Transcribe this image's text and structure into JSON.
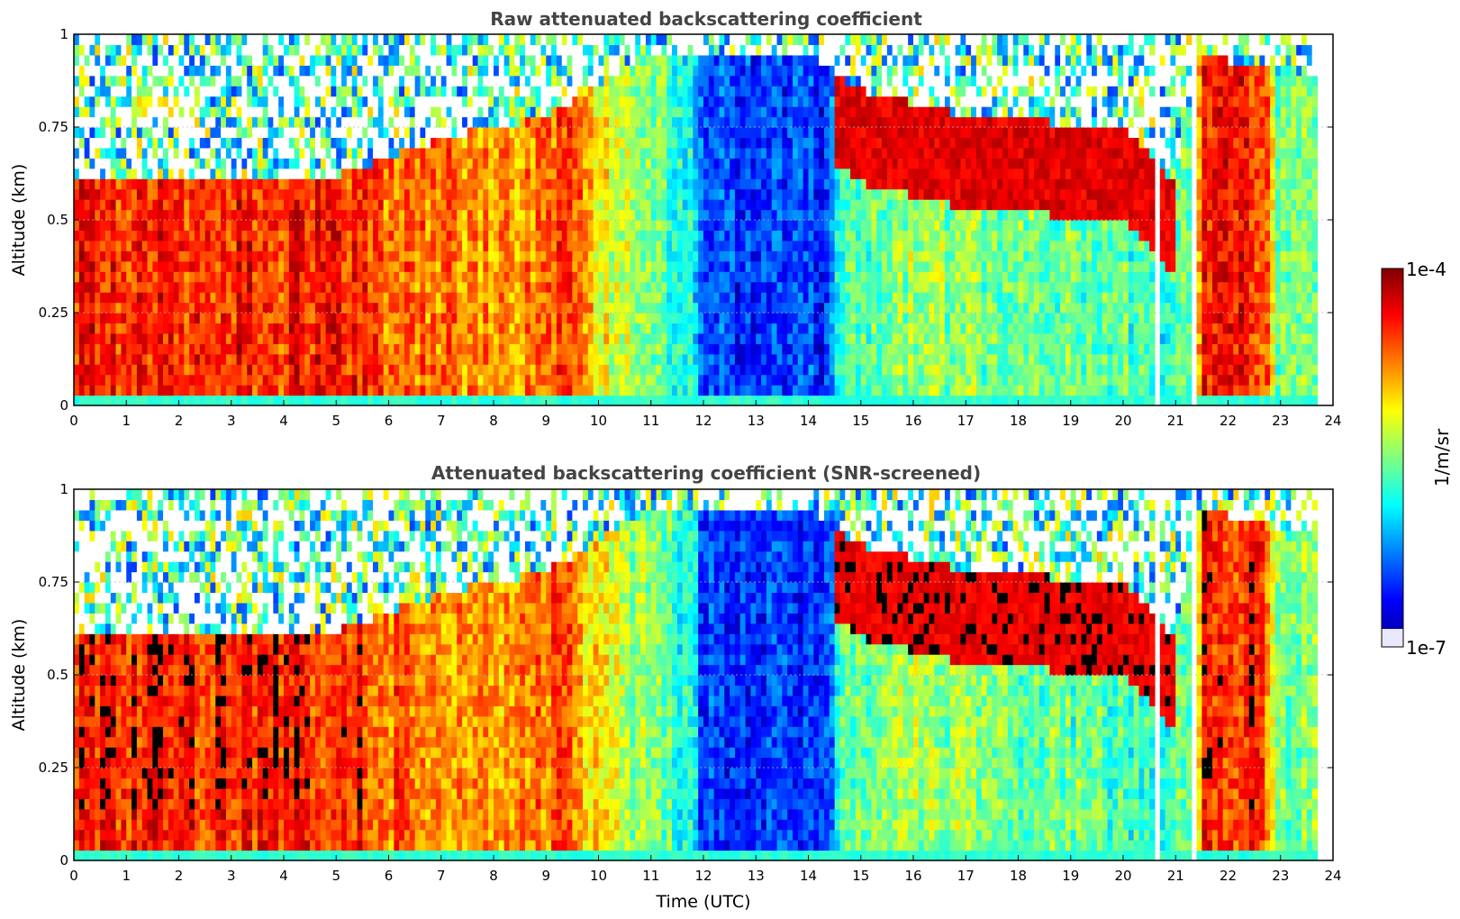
{
  "figure": {
    "colormap": "jet",
    "colorbar_label": "1/m/sr",
    "colorbar_ticks": [
      "1e-4",
      "1e-7"
    ]
  },
  "chart_data": [
    {
      "type": "heatmap",
      "title": "Raw attenuated backscattering coefficient",
      "xlabel": "",
      "ylabel": "Altitude (km)",
      "xlim": [
        0,
        24
      ],
      "ylim": [
        0,
        1
      ],
      "xticks": [
        "0",
        "1",
        "2",
        "3",
        "4",
        "5",
        "6",
        "7",
        "8",
        "9",
        "10",
        "11",
        "12",
        "13",
        "14",
        "15",
        "16",
        "17",
        "18",
        "19",
        "20",
        "21",
        "22",
        "23",
        "24"
      ],
      "yticks": [
        "0",
        "0.25",
        "0.5",
        "0.75",
        "1"
      ],
      "grid": true,
      "colorscale": "log",
      "clim": [
        "1e-7",
        "1e-4"
      ],
      "units": "1/m/sr",
      "data_gaps_hours": [
        [
          20.58,
          20.66
        ],
        [
          21.32,
          21.4
        ],
        [
          23.7,
          24.0
        ]
      ],
      "profile_summary": [
        {
          "hours": [
            0,
            6.5
          ],
          "near_surface": "high (red/orange)",
          "aerosol_layer_top_km": 0.6,
          "above_layer": "noisy/sparse"
        },
        {
          "hours": [
            6.5,
            9
          ],
          "near_surface": "orange/yellow",
          "aerosol_layer_top_km": 0.7
        },
        {
          "hours": [
            12,
            14.5
          ],
          "near_surface": "low (blue)",
          "aerosol_layer_top_km": 0.9
        },
        {
          "hours": [
            15,
            20
          ],
          "near_surface": "green",
          "aerosol_layer_top_km": 0.8,
          "cloud_band_km": [
            0.45,
            0.85
          ]
        },
        {
          "hours": [
            21.4,
            22.7
          ],
          "near_surface": "high (red)",
          "aerosol_layer_top_km": 1.0
        }
      ]
    },
    {
      "type": "heatmap",
      "title": "Attenuated backscattering coefficient (SNR-screened)",
      "xlabel": "Time (UTC)",
      "ylabel": "Altitude (km)",
      "xlim": [
        0,
        24
      ],
      "ylim": [
        0,
        1
      ],
      "xticks": [
        "0",
        "1",
        "2",
        "3",
        "4",
        "5",
        "6",
        "7",
        "8",
        "9",
        "10",
        "11",
        "12",
        "13",
        "14",
        "15",
        "16",
        "17",
        "18",
        "19",
        "20",
        "21",
        "22",
        "23",
        "24"
      ],
      "yticks": [
        "0",
        "0.25",
        "0.5",
        "0.75",
        "1"
      ],
      "grid": true,
      "colorscale": "log",
      "clim": [
        "1e-7",
        "1e-4"
      ],
      "units": "1/m/sr",
      "data_gaps_hours": [
        [
          20.58,
          20.66
        ],
        [
          21.32,
          21.4
        ],
        [
          23.7,
          24.0
        ]
      ],
      "screened_out": "black where low SNR"
    }
  ]
}
